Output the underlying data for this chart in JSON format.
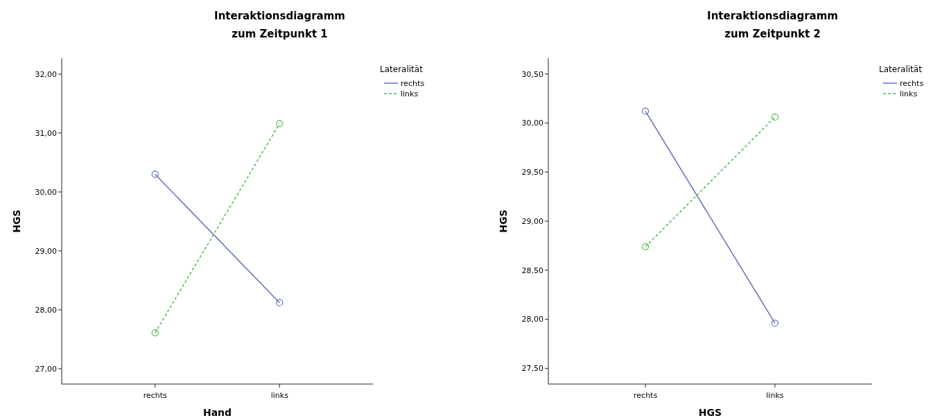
{
  "chart_data": [
    {
      "type": "line",
      "title": "Interaktionsdiagramm\nzum Zeitpunkt 1",
      "xlabel": "Hand",
      "ylabel": "HGS",
      "legend_title": "Lateralität",
      "legend": "top right",
      "marker": "circle",
      "categories": [
        "rechts",
        "links"
      ],
      "ylim": [
        26.74,
        32.27
      ],
      "yticks": [
        {
          "value": 27,
          "label": "27,00"
        },
        {
          "value": 28,
          "label": "28,00"
        },
        {
          "value": 29,
          "label": "29,00"
        },
        {
          "value": 30,
          "label": "30,00"
        },
        {
          "value": 31,
          "label": "31,00"
        },
        {
          "value": 32,
          "label": "32,00"
        }
      ],
      "series": [
        {
          "name": "rechts",
          "color": "#5e6eb8",
          "line_style": "solid",
          "values": [
            30.3,
            28.12
          ]
        },
        {
          "name": "links",
          "color": "#4dbb4b",
          "line_style": "dashed",
          "values": [
            27.61,
            31.16
          ]
        }
      ]
    },
    {
      "type": "line",
      "title": "Interaktionsdiagramm\nzum Zeitpunkt 2",
      "xlabel": "HGS",
      "ylabel": "HGS",
      "legend_title": "Lateralität",
      "legend": "top right",
      "marker": "circle",
      "categories": [
        "rechts",
        "links"
      ],
      "ylim": [
        27.34,
        30.66
      ],
      "yticks": [
        {
          "value": 27.5,
          "label": "27,50"
        },
        {
          "value": 28,
          "label": "28,00"
        },
        {
          "value": 28.5,
          "label": "28,50"
        },
        {
          "value": 29,
          "label": "29,00"
        },
        {
          "value": 29.5,
          "label": "29,50"
        },
        {
          "value": 30,
          "label": "30,00"
        },
        {
          "value": 30.5,
          "label": "30,50"
        }
      ],
      "series": [
        {
          "name": "rechts",
          "color": "#5e6eb8",
          "line_style": "solid",
          "values": [
            30.12,
            27.96
          ]
        },
        {
          "name": "links",
          "color": "#4dbb4b",
          "line_style": "dashed",
          "values": [
            28.74,
            30.06
          ]
        }
      ]
    }
  ]
}
